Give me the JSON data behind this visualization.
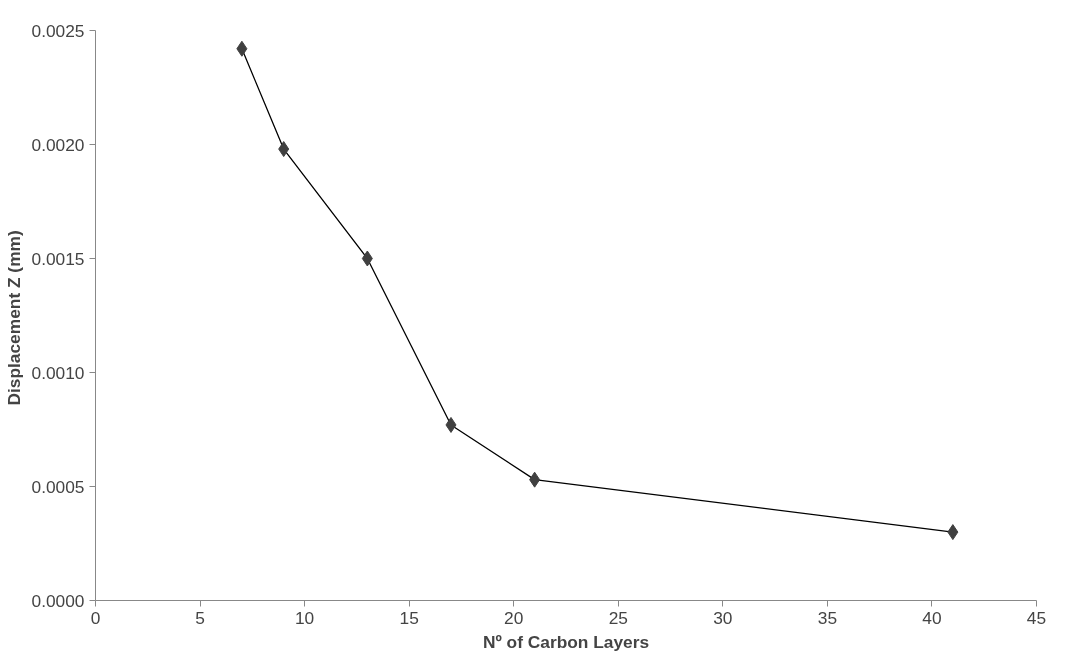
{
  "chart_data": {
    "type": "line",
    "xlabel": "Nº of Carbon Layers",
    "ylabel": "Displacement  Z (mm)",
    "x": [
      7,
      9,
      13,
      17,
      21,
      41
    ],
    "series": [
      {
        "color": "#404040",
        "values": [
          0.00242,
          0.00198,
          0.0015,
          0.00077,
          0.00053,
          0.0003
        ]
      }
    ],
    "xlim": [
      0,
      45
    ],
    "xticks": [
      0,
      5,
      10,
      15,
      20,
      25,
      30,
      35,
      40,
      45
    ],
    "ylim": [
      0,
      0.0025
    ],
    "yticks": [
      {
        "value": 0,
        "label": "0.0000"
      },
      {
        "value": 0.0005,
        "label": "0.0005"
      },
      {
        "value": 0.001,
        "label": "0.0010"
      },
      {
        "value": 0.0015,
        "label": "0.0015"
      },
      {
        "value": 0.002,
        "label": "0.0020"
      },
      {
        "value": 0.0025,
        "label": "0.0025"
      }
    ],
    "grid": false,
    "marker": "diamond",
    "line_style": "solid"
  }
}
